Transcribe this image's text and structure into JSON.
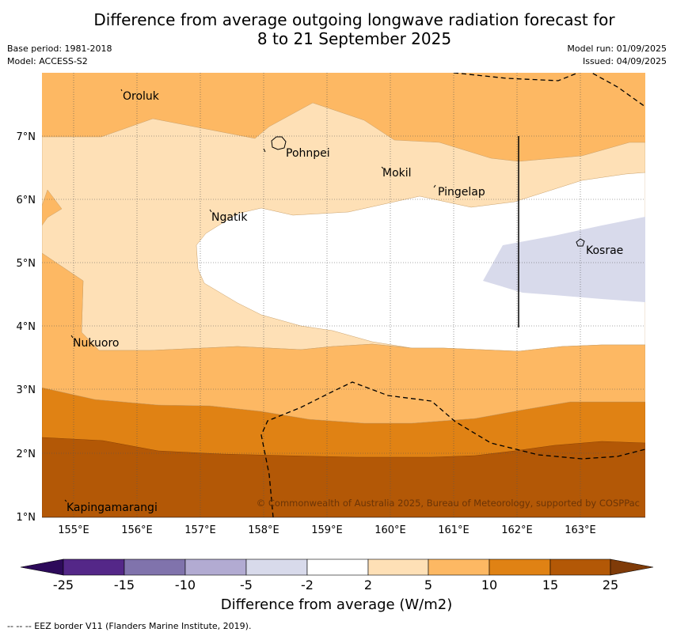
{
  "title": "Difference from average outgoing longwave radiation forecast for 8 to 21 September 2025",
  "meta": {
    "base_period": "Base period: 1981-2018",
    "model": "Model: ACCESS-S2",
    "model_run": "Model run: 01/09/2025",
    "issued": "Issued: 04/09/2025"
  },
  "axes": {
    "lat_ticks": [
      "7°N",
      "6°N",
      "5°N",
      "4°N",
      "3°N",
      "2°N",
      "1°N"
    ],
    "lon_ticks": [
      "155°E",
      "156°E",
      "157°E",
      "158°E",
      "159°E",
      "160°E",
      "161°E",
      "162°E",
      "163°E"
    ]
  },
  "places": [
    "Oroluk",
    "Pohnpei",
    "Mokil",
    "Pingelap",
    "Ngatik",
    "Kosrae",
    "Nukuoro",
    "Kapingamarangi"
  ],
  "copyright": "© Commonwealth of Australia 2025, Bureau of Meteorology, supported by COSPPac",
  "colorbar": {
    "labels": [
      "-25",
      "-15",
      "-10",
      "-5",
      "-2",
      "2",
      "5",
      "10",
      "15",
      "25"
    ],
    "colors": [
      "#2d0a5a",
      "#542788",
      "#8073ac",
      "#b2abd2",
      "#d8daeb",
      "#ffffff",
      "#fee0b6",
      "#fdb863",
      "#e08214",
      "#b35806",
      "#7f3b08"
    ],
    "xlabel": "Difference from average (W/m2)"
  },
  "footer": "--  --  -- EEZ border V11 (Flanders Marine Institute, 2019)."
}
